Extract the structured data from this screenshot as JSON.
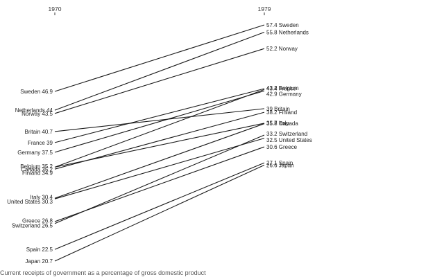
{
  "chart_data": {
    "type": "line",
    "x": [
      "1970",
      "1979"
    ],
    "series": [
      {
        "name": "Sweden",
        "values": [
          46.9,
          57.4
        ]
      },
      {
        "name": "Netherlands",
        "values": [
          44,
          55.8
        ]
      },
      {
        "name": "Norway",
        "values": [
          43.5,
          52.2
        ]
      },
      {
        "name": "Britain",
        "values": [
          40.7,
          39
        ]
      },
      {
        "name": "France",
        "values": [
          39,
          43.4
        ]
      },
      {
        "name": "Germany",
        "values": [
          37.5,
          42.9
        ]
      },
      {
        "name": "Belgium",
        "values": [
          35.2,
          43.2
        ]
      },
      {
        "name": "Canada",
        "values": [
          35.2,
          35.8
        ]
      },
      {
        "name": "Finland",
        "values": [
          34.9,
          38.2
        ]
      },
      {
        "name": "Italy",
        "values": [
          30.4,
          35.7
        ]
      },
      {
        "name": "United States",
        "values": [
          30.3,
          32.5
        ]
      },
      {
        "name": "Greece",
        "values": [
          26.8,
          30.6
        ]
      },
      {
        "name": "Switzerland",
        "values": [
          26.5,
          33.2
        ]
      },
      {
        "name": "Spain",
        "values": [
          22.5,
          27.1
        ]
      },
      {
        "name": "Japan",
        "values": [
          20.7,
          26.6
        ]
      }
    ],
    "left_labels": [
      "Sweden 46.9",
      "Netherlands 44",
      "Norway 43.5",
      "Britain 40.7",
      "France 39",
      "Germany 37.5",
      "Belgium 35.2",
      "Canada 35.2",
      "Finland 34.9",
      "Italy 30.4",
      "United States 30.3",
      "Greece 26.8",
      "Switzerland 26.5",
      "Spain 22.5",
      "Japan 20.7"
    ],
    "right_labels": [
      "57.4 Sweden",
      "55.8 Netherlands",
      "52.2 Norway",
      "39 Britain",
      "43.4 France",
      "42.9 Germany",
      "43.2 Belgium",
      "35.8 Canada",
      "38.2 Finland",
      "35.7 Italy",
      "32.5 United States",
      "30.6 Greece",
      "33.2 Switzerland",
      "27.1 Spain",
      "26.6 Japan"
    ],
    "caption": "Current receipts of government as a percentage of gross domestic product"
  }
}
